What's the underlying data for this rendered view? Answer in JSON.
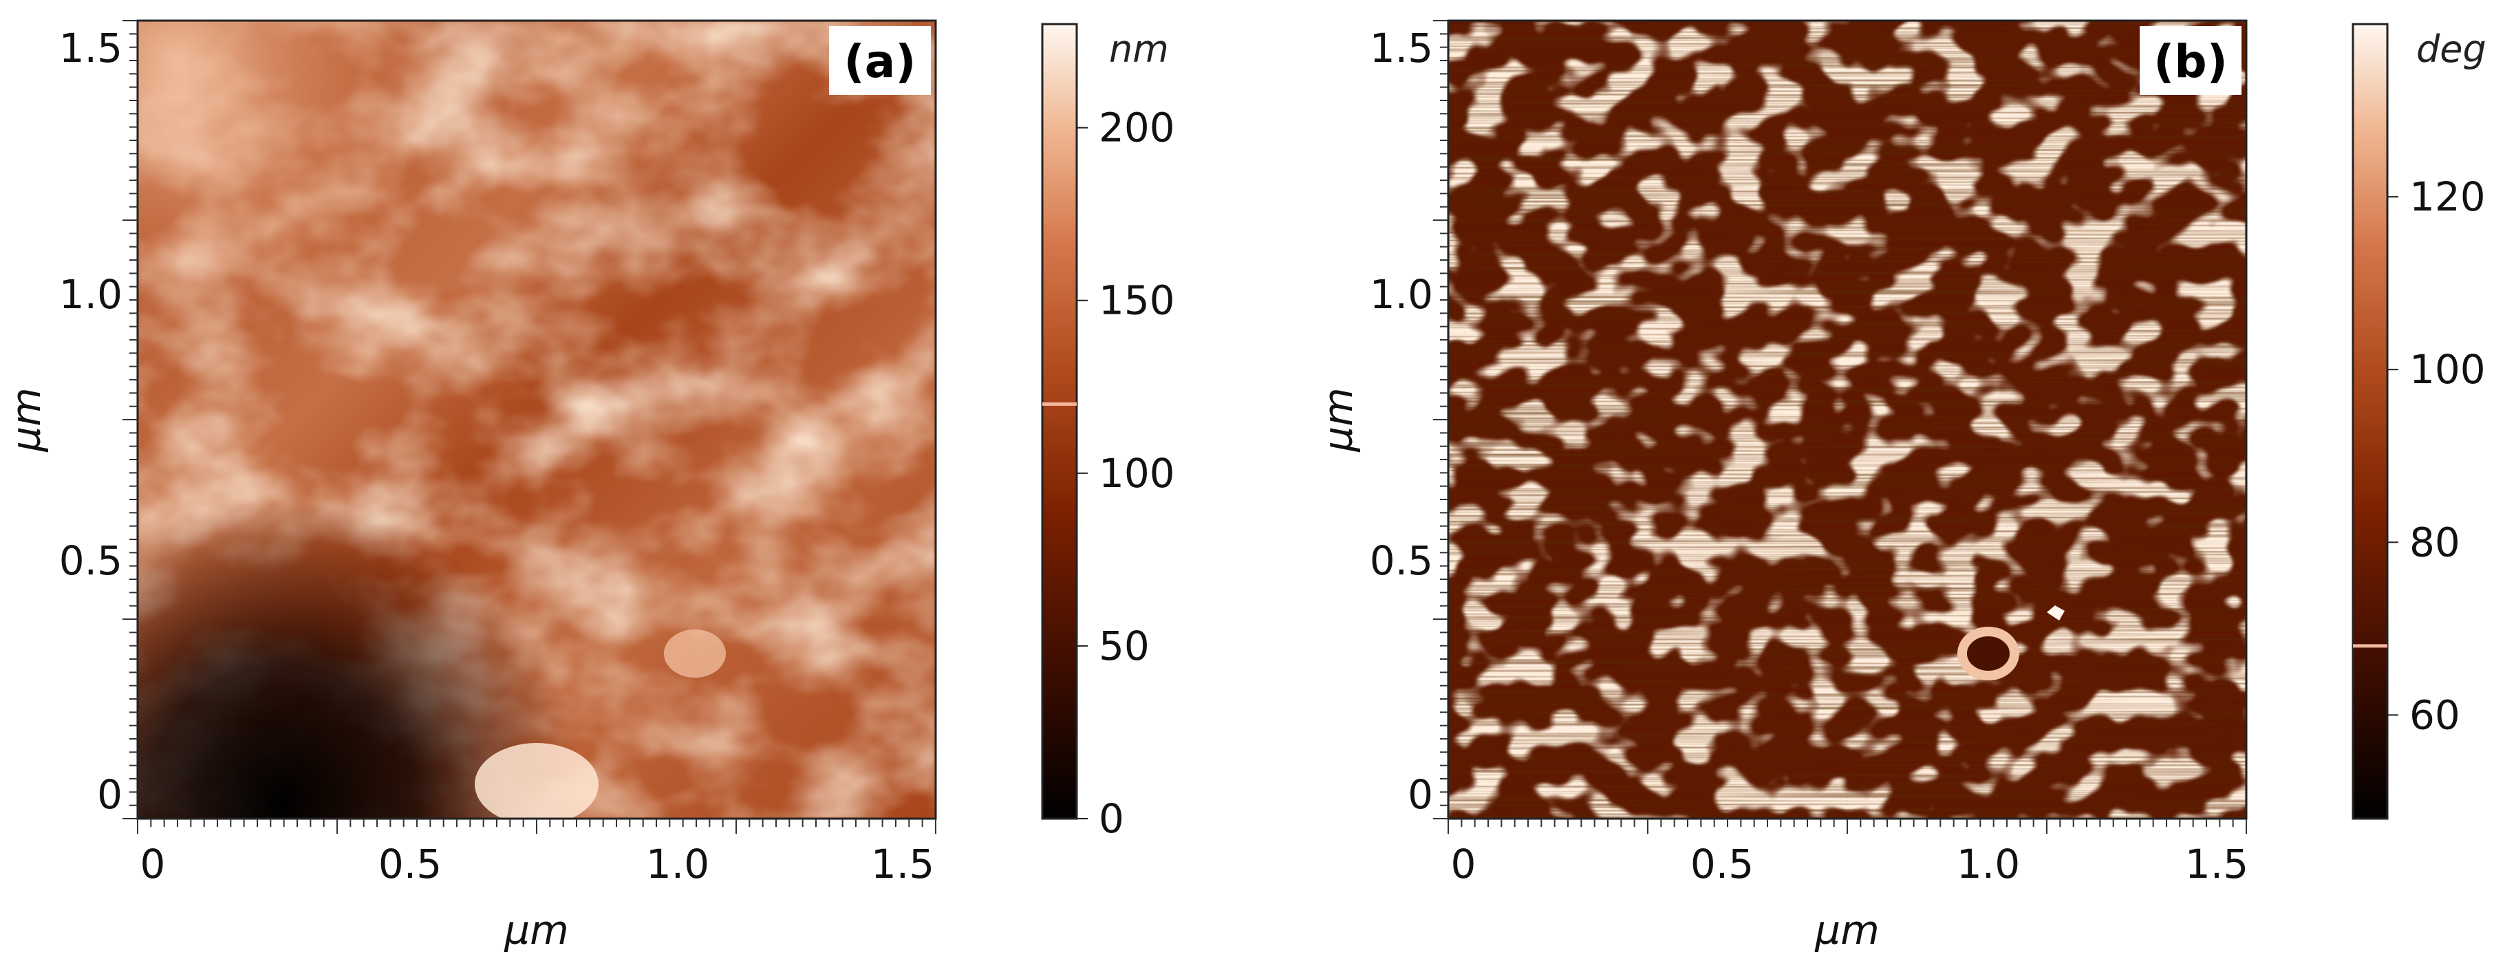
{
  "panels": [
    {
      "tag": "(a)",
      "x_label": "µm",
      "y_label": "µm",
      "x_ticks": [
        "0",
        "0.5",
        "1.0",
        "1.5"
      ],
      "y_ticks": [
        "0",
        "0.5",
        "1.0",
        "1.5"
      ],
      "colorbar": {
        "unit": "nm",
        "ticks": [
          "0",
          "50",
          "100",
          "150",
          "200"
        ],
        "range": [
          0,
          230
        ],
        "marker_value": 120
      }
    },
    {
      "tag": "(b)",
      "x_label": "µm",
      "y_label": "µm",
      "x_ticks": [
        "0",
        "0.5",
        "1.0",
        "1.5"
      ],
      "y_ticks": [
        "0",
        "0.5",
        "1.0",
        "1.5"
      ],
      "colorbar": {
        "unit": "deg",
        "ticks": [
          "60",
          "80",
          "100",
          "120"
        ],
        "range": [
          48,
          140
        ],
        "marker_value": 68
      }
    }
  ],
  "colors": {
    "colormap": [
      "#000000",
      "#3a0c00",
      "#7a2000",
      "#b04a1c",
      "#d4764a",
      "#f0b894",
      "#fff7f0"
    ],
    "marker": "#f3b7a0"
  }
}
